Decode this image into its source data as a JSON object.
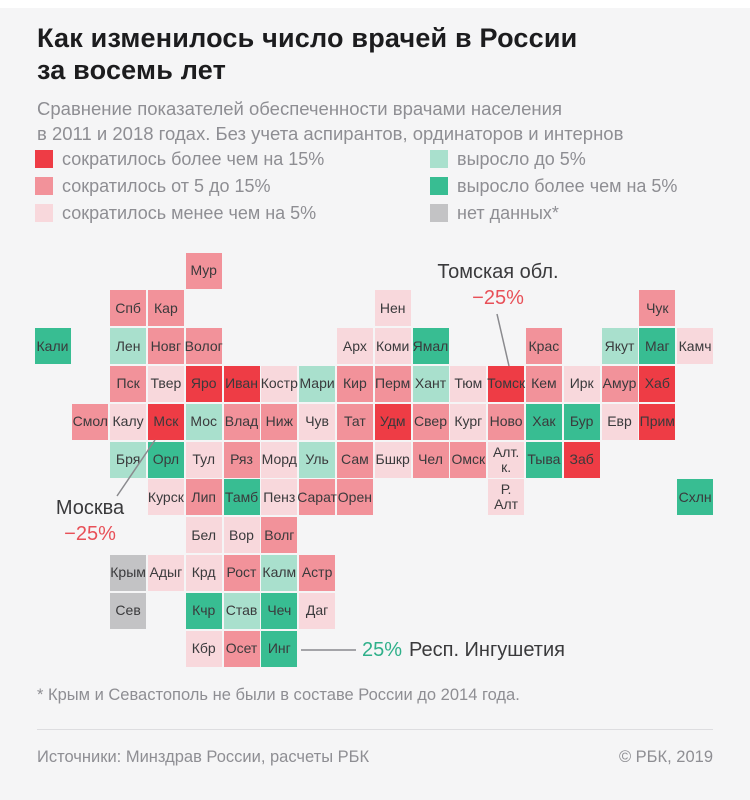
{
  "title": {
    "line1": "Как изменилось число врачей в России",
    "line2": "за восемь лет"
  },
  "subtitle": {
    "line1": "Сравнение показателей обеспеченности врачами населения",
    "line2": "в 2011 и 2018 годах. Без учета аспирантов, ординаторов и интернов"
  },
  "colors": {
    "negative_accent": "#e85058",
    "positive_accent": "#2fb08a",
    "background": "#f5f5f6",
    "tile_text": "#3a3a3c",
    "muted_text": "#8e8e93"
  },
  "annotations": {
    "tomsk": {
      "label": "Томская обл.",
      "value": "−25%"
    },
    "moscow": {
      "label": "Москва",
      "value": "−25%"
    },
    "ingushetia": {
      "value": "25%",
      "label": "Респ. Ингушетия"
    }
  },
  "footnote": "* Крым и Севастополь не были в составе России до 2014 года.",
  "footer": {
    "source": "Источники: Минздрав России, расчеты РБК",
    "copyright": "© РБК, 2019"
  },
  "chart_data": {
    "type": "heatmap",
    "subtype": "tile-grid-cartogram",
    "title": "Как изменилось число врачей в России за восемь лет",
    "legend_position": "top",
    "categories": [
      {
        "key": "decline-over-15",
        "label": "сократилось более чем на 15%",
        "color": "#ee3c45"
      },
      {
        "key": "decline-5-15",
        "label": "сократилось от 5 до 15%",
        "color": "#f2929a"
      },
      {
        "key": "decline-under-5",
        "label": "сократилось менее чем на 5%",
        "color": "#f8d8dc"
      },
      {
        "key": "growth-under-5",
        "label": "выросло до 5%",
        "color": "#a9e0cd"
      },
      {
        "key": "growth-over-5",
        "label": "выросло более чем на 5%",
        "color": "#38bd92"
      },
      {
        "key": "no-data",
        "label": "нет данных*",
        "color": "#c3c3c5"
      }
    ],
    "callouts": [
      {
        "region": "Томск",
        "label": "Томская обл.",
        "value": "−25%"
      },
      {
        "region": "Мск",
        "label": "Москва",
        "value": "−25%"
      },
      {
        "region": "Инг",
        "label": "Респ. Ингушетия",
        "value": "25%"
      }
    ],
    "tiles": [
      {
        "label": "Мур",
        "col": 4,
        "row": 0,
        "cat": "decline-5-15"
      },
      {
        "label": "Спб",
        "col": 2,
        "row": 1,
        "cat": "decline-5-15"
      },
      {
        "label": "Кар",
        "col": 3,
        "row": 1,
        "cat": "decline-5-15"
      },
      {
        "label": "Нен",
        "col": 9,
        "row": 1,
        "cat": "decline-under-5"
      },
      {
        "label": "Чук",
        "col": 16,
        "row": 1,
        "cat": "decline-5-15"
      },
      {
        "label": "Кали",
        "col": 0,
        "row": 2,
        "cat": "growth-over-5"
      },
      {
        "label": "Лен",
        "col": 2,
        "row": 2,
        "cat": "growth-under-5"
      },
      {
        "label": "Новг",
        "col": 3,
        "row": 2,
        "cat": "decline-5-15"
      },
      {
        "label": "Волог",
        "col": 4,
        "row": 2,
        "cat": "decline-5-15"
      },
      {
        "label": "Арх",
        "col": 8,
        "row": 2,
        "cat": "decline-under-5"
      },
      {
        "label": "Коми",
        "col": 9,
        "row": 2,
        "cat": "decline-under-5"
      },
      {
        "label": "Ямал",
        "col": 10,
        "row": 2,
        "cat": "growth-over-5"
      },
      {
        "label": "Крас",
        "col": 13,
        "row": 2,
        "cat": "decline-5-15"
      },
      {
        "label": "Якут",
        "col": 15,
        "row": 2,
        "cat": "growth-under-5"
      },
      {
        "label": "Маг",
        "col": 16,
        "row": 2,
        "cat": "growth-over-5"
      },
      {
        "label": "Камч",
        "col": 17,
        "row": 2,
        "cat": "decline-under-5"
      },
      {
        "label": "Пск",
        "col": 2,
        "row": 3,
        "cat": "decline-5-15"
      },
      {
        "label": "Твер",
        "col": 3,
        "row": 3,
        "cat": "decline-under-5"
      },
      {
        "label": "Яро",
        "col": 4,
        "row": 3,
        "cat": "decline-over-15"
      },
      {
        "label": "Иван",
        "col": 5,
        "row": 3,
        "cat": "decline-over-15"
      },
      {
        "label": "Костр",
        "col": 6,
        "row": 3,
        "cat": "decline-under-5"
      },
      {
        "label": "Мари",
        "col": 7,
        "row": 3,
        "cat": "growth-under-5"
      },
      {
        "label": "Кир",
        "col": 8,
        "row": 3,
        "cat": "decline-5-15"
      },
      {
        "label": "Перм",
        "col": 9,
        "row": 3,
        "cat": "decline-5-15"
      },
      {
        "label": "Хант",
        "col": 10,
        "row": 3,
        "cat": "growth-under-5"
      },
      {
        "label": "Тюм",
        "col": 11,
        "row": 3,
        "cat": "decline-under-5"
      },
      {
        "label": "Томск",
        "col": 12,
        "row": 3,
        "cat": "decline-over-15"
      },
      {
        "label": "Кем",
        "col": 13,
        "row": 3,
        "cat": "decline-5-15"
      },
      {
        "label": "Ирк",
        "col": 14,
        "row": 3,
        "cat": "decline-under-5"
      },
      {
        "label": "Амур",
        "col": 15,
        "row": 3,
        "cat": "decline-5-15"
      },
      {
        "label": "Хаб",
        "col": 16,
        "row": 3,
        "cat": "decline-over-15"
      },
      {
        "label": "Смол",
        "col": 1,
        "row": 4,
        "cat": "decline-5-15"
      },
      {
        "label": "Калу",
        "col": 2,
        "row": 4,
        "cat": "decline-under-5"
      },
      {
        "label": "Мск",
        "col": 3,
        "row": 4,
        "cat": "decline-over-15"
      },
      {
        "label": "Мос",
        "col": 4,
        "row": 4,
        "cat": "growth-under-5"
      },
      {
        "label": "Влад",
        "col": 5,
        "row": 4,
        "cat": "decline-5-15"
      },
      {
        "label": "Ниж",
        "col": 6,
        "row": 4,
        "cat": "decline-5-15"
      },
      {
        "label": "Чув",
        "col": 7,
        "row": 4,
        "cat": "decline-under-5"
      },
      {
        "label": "Тат",
        "col": 8,
        "row": 4,
        "cat": "decline-5-15"
      },
      {
        "label": "Удм",
        "col": 9,
        "row": 4,
        "cat": "decline-over-15"
      },
      {
        "label": "Свер",
        "col": 10,
        "row": 4,
        "cat": "decline-5-15"
      },
      {
        "label": "Кург",
        "col": 11,
        "row": 4,
        "cat": "decline-under-5"
      },
      {
        "label": "Ново",
        "col": 12,
        "row": 4,
        "cat": "decline-5-15"
      },
      {
        "label": "Хак",
        "col": 13,
        "row": 4,
        "cat": "growth-over-5"
      },
      {
        "label": "Бур",
        "col": 14,
        "row": 4,
        "cat": "growth-over-5"
      },
      {
        "label": "Евр",
        "col": 15,
        "row": 4,
        "cat": "decline-under-5"
      },
      {
        "label": "Прим",
        "col": 16,
        "row": 4,
        "cat": "decline-over-15"
      },
      {
        "label": "Бря",
        "col": 2,
        "row": 5,
        "cat": "growth-under-5"
      },
      {
        "label": "Орл",
        "col": 3,
        "row": 5,
        "cat": "growth-over-5"
      },
      {
        "label": "Тул",
        "col": 4,
        "row": 5,
        "cat": "decline-under-5"
      },
      {
        "label": "Ряз",
        "col": 5,
        "row": 5,
        "cat": "decline-5-15"
      },
      {
        "label": "Морд",
        "col": 6,
        "row": 5,
        "cat": "decline-under-5"
      },
      {
        "label": "Уль",
        "col": 7,
        "row": 5,
        "cat": "growth-under-5"
      },
      {
        "label": "Сам",
        "col": 8,
        "row": 5,
        "cat": "decline-5-15"
      },
      {
        "label": "Бшкр",
        "col": 9,
        "row": 5,
        "cat": "decline-under-5"
      },
      {
        "label": "Чел",
        "col": 10,
        "row": 5,
        "cat": "decline-5-15"
      },
      {
        "label": "Омск",
        "col": 11,
        "row": 5,
        "cat": "decline-5-15"
      },
      {
        "label": "Алт. к.",
        "col": 12,
        "row": 5,
        "cat": "decline-under-5"
      },
      {
        "label": "Тыва",
        "col": 13,
        "row": 5,
        "cat": "growth-over-5"
      },
      {
        "label": "Заб",
        "col": 14,
        "row": 5,
        "cat": "decline-over-15"
      },
      {
        "label": "Курск",
        "col": 3,
        "row": 6,
        "cat": "decline-under-5"
      },
      {
        "label": "Лип",
        "col": 4,
        "row": 6,
        "cat": "decline-5-15"
      },
      {
        "label": "Тамб",
        "col": 5,
        "row": 6,
        "cat": "growth-over-5"
      },
      {
        "label": "Пенз",
        "col": 6,
        "row": 6,
        "cat": "decline-under-5"
      },
      {
        "label": "Сарат",
        "col": 7,
        "row": 6,
        "cat": "decline-5-15"
      },
      {
        "label": "Орен",
        "col": 8,
        "row": 6,
        "cat": "decline-5-15"
      },
      {
        "label": "Р. Алт",
        "col": 12,
        "row": 6,
        "cat": "decline-under-5"
      },
      {
        "label": "Схлн",
        "col": 17,
        "row": 6,
        "cat": "growth-over-5"
      },
      {
        "label": "Бел",
        "col": 4,
        "row": 7,
        "cat": "decline-under-5"
      },
      {
        "label": "Вор",
        "col": 5,
        "row": 7,
        "cat": "decline-under-5"
      },
      {
        "label": "Волг",
        "col": 6,
        "row": 7,
        "cat": "decline-5-15"
      },
      {
        "label": "Крым",
        "col": 2,
        "row": 8,
        "cat": "no-data"
      },
      {
        "label": "Адыг",
        "col": 3,
        "row": 8,
        "cat": "decline-under-5"
      },
      {
        "label": "Крд",
        "col": 4,
        "row": 8,
        "cat": "decline-under-5"
      },
      {
        "label": "Рост",
        "col": 5,
        "row": 8,
        "cat": "decline-5-15"
      },
      {
        "label": "Калм",
        "col": 6,
        "row": 8,
        "cat": "growth-under-5"
      },
      {
        "label": "Астр",
        "col": 7,
        "row": 8,
        "cat": "decline-5-15"
      },
      {
        "label": "Сев",
        "col": 2,
        "row": 9,
        "cat": "no-data"
      },
      {
        "label": "Кчр",
        "col": 4,
        "row": 9,
        "cat": "growth-over-5"
      },
      {
        "label": "Став",
        "col": 5,
        "row": 9,
        "cat": "growth-under-5"
      },
      {
        "label": "Чеч",
        "col": 6,
        "row": 9,
        "cat": "growth-over-5"
      },
      {
        "label": "Даг",
        "col": 7,
        "row": 9,
        "cat": "decline-under-5"
      },
      {
        "label": "Кбр",
        "col": 4,
        "row": 10,
        "cat": "decline-under-5"
      },
      {
        "label": "Осет",
        "col": 5,
        "row": 10,
        "cat": "decline-5-15"
      },
      {
        "label": "Инг",
        "col": 6,
        "row": 10,
        "cat": "growth-over-5"
      }
    ]
  }
}
